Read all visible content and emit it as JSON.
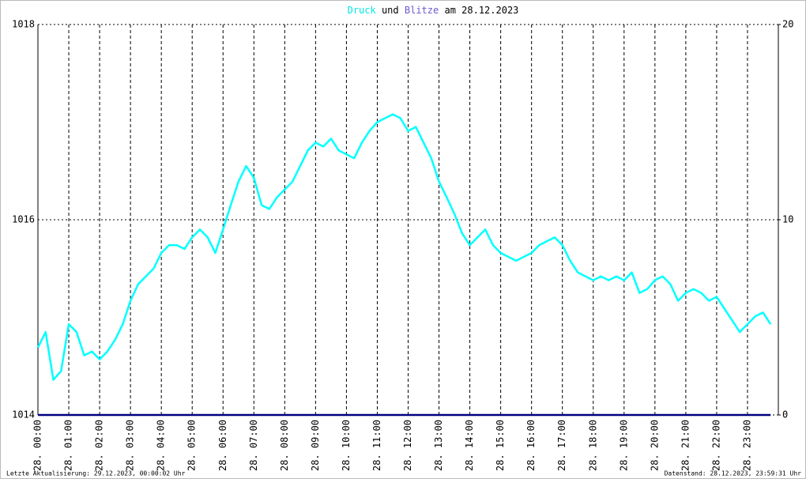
{
  "chart_data": {
    "type": "line",
    "title": [
      "Druck",
      "und",
      "Blitze",
      "am 28.12.2023"
    ],
    "title_colors": [
      "#00e5e5",
      "#000000",
      "#6a5acd",
      "#000000"
    ],
    "footer_left": "Letzte Aktualisierung: 29.12.2023, 00:00:02 Uhr",
    "footer_right": "Datenstand: 28.12.2023, 23:59:31 Uhr",
    "xlim": [
      0,
      24
    ],
    "xticks": [
      {
        "value": 0,
        "label": "28. 00:00"
      },
      {
        "value": 1,
        "label": "28. 01:00"
      },
      {
        "value": 2,
        "label": "28. 02:00"
      },
      {
        "value": 3,
        "label": "28. 03:00"
      },
      {
        "value": 4,
        "label": "28. 04:00"
      },
      {
        "value": 5,
        "label": "28. 05:00"
      },
      {
        "value": 6,
        "label": "28. 06:00"
      },
      {
        "value": 7,
        "label": "28. 07:00"
      },
      {
        "value": 8,
        "label": "28. 08:00"
      },
      {
        "value": 9,
        "label": "28. 09:00"
      },
      {
        "value": 10,
        "label": "28. 10:00"
      },
      {
        "value": 11,
        "label": "28. 11:00"
      },
      {
        "value": 12,
        "label": "28. 12:00"
      },
      {
        "value": 13,
        "label": "28. 13:00"
      },
      {
        "value": 14,
        "label": "28. 14:00"
      },
      {
        "value": 15,
        "label": "28. 15:00"
      },
      {
        "value": 16,
        "label": "28. 16:00"
      },
      {
        "value": 17,
        "label": "28. 17:00"
      },
      {
        "value": 18,
        "label": "28. 18:00"
      },
      {
        "value": 19,
        "label": "28. 19:00"
      },
      {
        "value": 20,
        "label": "28. 20:00"
      },
      {
        "value": 21,
        "label": "28. 21:00"
      },
      {
        "value": 22,
        "label": "28. 22:00"
      },
      {
        "value": 23,
        "label": "28. 23:00"
      }
    ],
    "ylim": [
      1014,
      1018
    ],
    "yticks": [
      1014,
      1016,
      1018
    ],
    "y2lim": [
      0,
      20
    ],
    "y2ticks": [
      0,
      10,
      20
    ],
    "grid": true,
    "x": [
      0,
      0.25,
      0.5,
      0.75,
      1,
      1.25,
      1.5,
      1.75,
      2,
      2.25,
      2.5,
      2.75,
      3,
      3.25,
      3.5,
      3.75,
      4,
      4.25,
      4.5,
      4.75,
      5,
      5.25,
      5.5,
      5.75,
      6,
      6.25,
      6.5,
      6.75,
      7,
      7.25,
      7.5,
      7.75,
      8,
      8.25,
      8.5,
      8.75,
      9,
      9.25,
      9.5,
      9.75,
      10,
      10.25,
      10.5,
      10.75,
      11,
      11.25,
      11.5,
      11.75,
      12,
      12.25,
      12.5,
      12.75,
      13,
      13.25,
      13.5,
      13.75,
      14,
      14.25,
      14.5,
      14.75,
      15,
      15.25,
      15.5,
      15.75,
      16,
      16.25,
      16.5,
      16.75,
      17,
      17.25,
      17.5,
      17.75,
      18,
      18.25,
      18.5,
      18.75,
      19,
      19.25,
      19.5,
      19.75,
      20,
      20.25,
      20.5,
      20.75,
      21,
      21.25,
      21.5,
      21.75,
      22,
      22.25,
      22.5,
      22.75,
      23,
      23.25,
      23.5,
      23.75
    ],
    "series": [
      {
        "name": "Druck",
        "color": "#00ffff",
        "axis": "y",
        "values": [
          1014.69,
          1014.85,
          1014.36,
          1014.45,
          1014.93,
          1014.85,
          1014.61,
          1014.65,
          1014.57,
          1014.65,
          1014.77,
          1014.93,
          1015.17,
          1015.34,
          1015.42,
          1015.5,
          1015.66,
          1015.74,
          1015.74,
          1015.7,
          1015.82,
          1015.9,
          1015.82,
          1015.66,
          1015.9,
          1016.15,
          1016.39,
          1016.55,
          1016.43,
          1016.15,
          1016.11,
          1016.23,
          1016.31,
          1016.39,
          1016.55,
          1016.71,
          1016.79,
          1016.75,
          1016.83,
          1016.71,
          1016.67,
          1016.63,
          1016.79,
          1016.91,
          1017.0,
          1017.04,
          1017.08,
          1017.04,
          1016.91,
          1016.95,
          1016.79,
          1016.63,
          1016.39,
          1016.23,
          1016.06,
          1015.86,
          1015.74,
          1015.82,
          1015.9,
          1015.74,
          1015.66,
          1015.62,
          1015.58,
          1015.62,
          1015.66,
          1015.74,
          1015.78,
          1015.82,
          1015.74,
          1015.58,
          1015.46,
          1015.42,
          1015.38,
          1015.42,
          1015.38,
          1015.42,
          1015.38,
          1015.46,
          1015.25,
          1015.29,
          1015.38,
          1015.42,
          1015.34,
          1015.17,
          1015.25,
          1015.29,
          1015.25,
          1015.17,
          1015.21,
          1015.09,
          1014.97,
          1014.85,
          1014.93,
          1015.01,
          1015.05,
          1014.93
        ]
      },
      {
        "name": "Blitze",
        "color": "#000080",
        "axis": "y2",
        "values": [
          0,
          0,
          0,
          0,
          0,
          0,
          0,
          0,
          0,
          0,
          0,
          0,
          0,
          0,
          0,
          0,
          0,
          0,
          0,
          0,
          0,
          0,
          0,
          0,
          0,
          0,
          0,
          0,
          0,
          0,
          0,
          0,
          0,
          0,
          0,
          0,
          0,
          0,
          0,
          0,
          0,
          0,
          0,
          0,
          0,
          0,
          0,
          0,
          0,
          0,
          0,
          0,
          0,
          0,
          0,
          0,
          0,
          0,
          0,
          0,
          0,
          0,
          0,
          0,
          0,
          0,
          0,
          0,
          0,
          0,
          0,
          0,
          0,
          0,
          0,
          0,
          0,
          0,
          0,
          0,
          0,
          0,
          0,
          0,
          0,
          0,
          0,
          0,
          0,
          0,
          0,
          0,
          0,
          0,
          0,
          0
        ]
      }
    ]
  }
}
